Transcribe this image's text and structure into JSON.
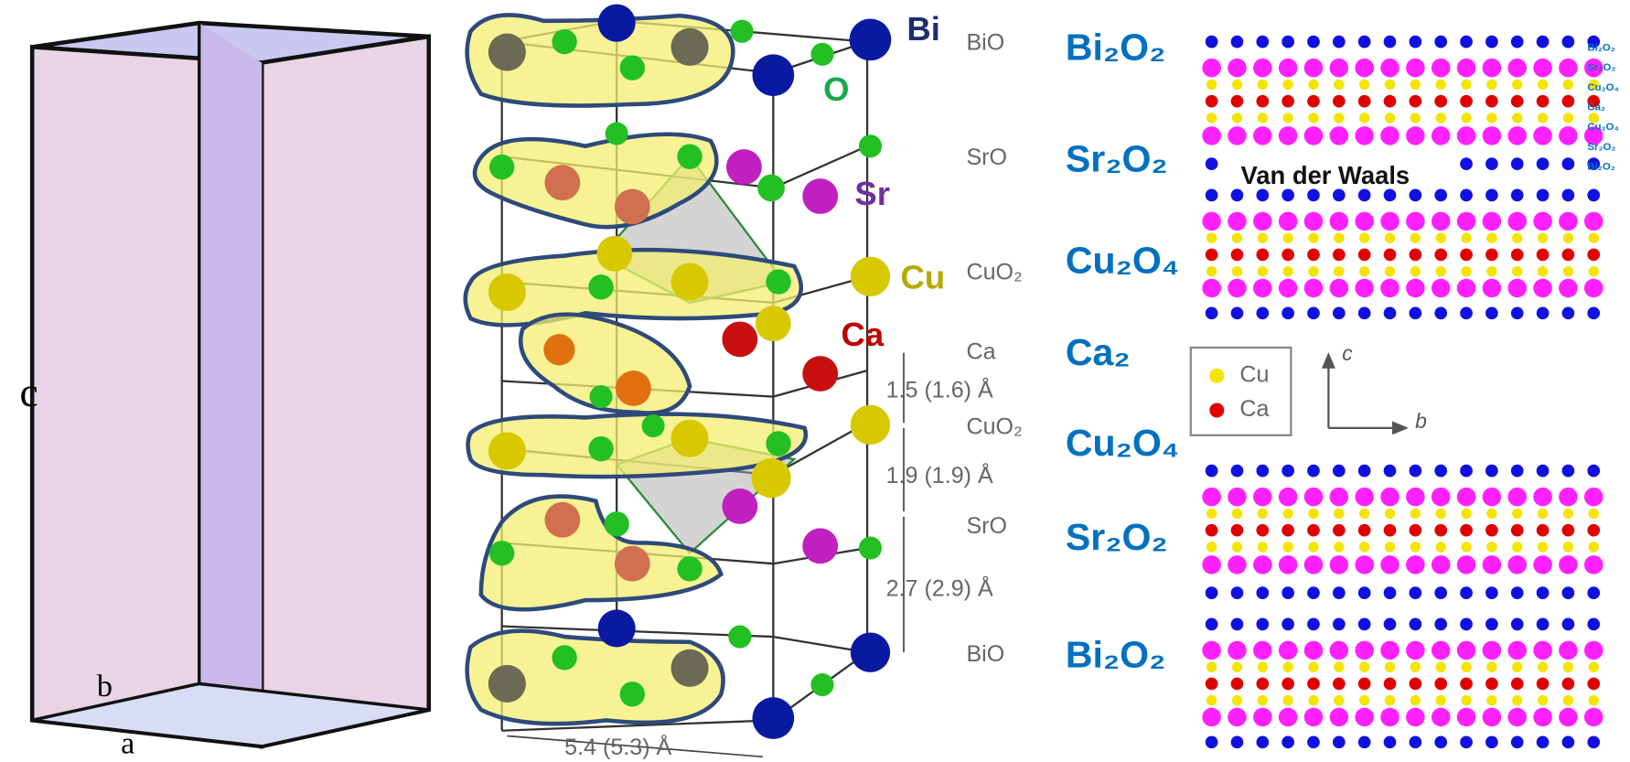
{
  "prism": {
    "axis_labels": [
      "c",
      "b",
      "a"
    ]
  },
  "structure": {
    "elements": [
      "Bi",
      "O",
      "Sr",
      "Cu",
      "Ca"
    ],
    "layers": [
      "BiO",
      "SrO",
      "CuO₂",
      "Ca",
      "CuO₂",
      "SrO",
      "BiO"
    ],
    "spacings": [
      "1.5 (1.6) Å",
      "1.9 (1.9) Å",
      "2.7 (2.9) Å"
    ],
    "lattice": "5.4 (5.3) Å"
  },
  "layer_labels": [
    "Bi₂O₂",
    "Sr₂O₂",
    "Cu₂O₄",
    "Ca₂",
    "Cu₂O₄",
    "Sr₂O₂",
    "Bi₂O₂"
  ],
  "lattice_view": {
    "gap_label": "Van der Waals",
    "stack": [
      "Bi₂O₂",
      "Sr₂O₂",
      "Cu₂O₄",
      "Ca₂",
      "Cu₂O₄",
      "Sr₂O₂",
      "Bi₂O₂"
    ],
    "legend": [
      "Cu",
      "Ca"
    ],
    "axes": [
      "c",
      "b"
    ]
  }
}
